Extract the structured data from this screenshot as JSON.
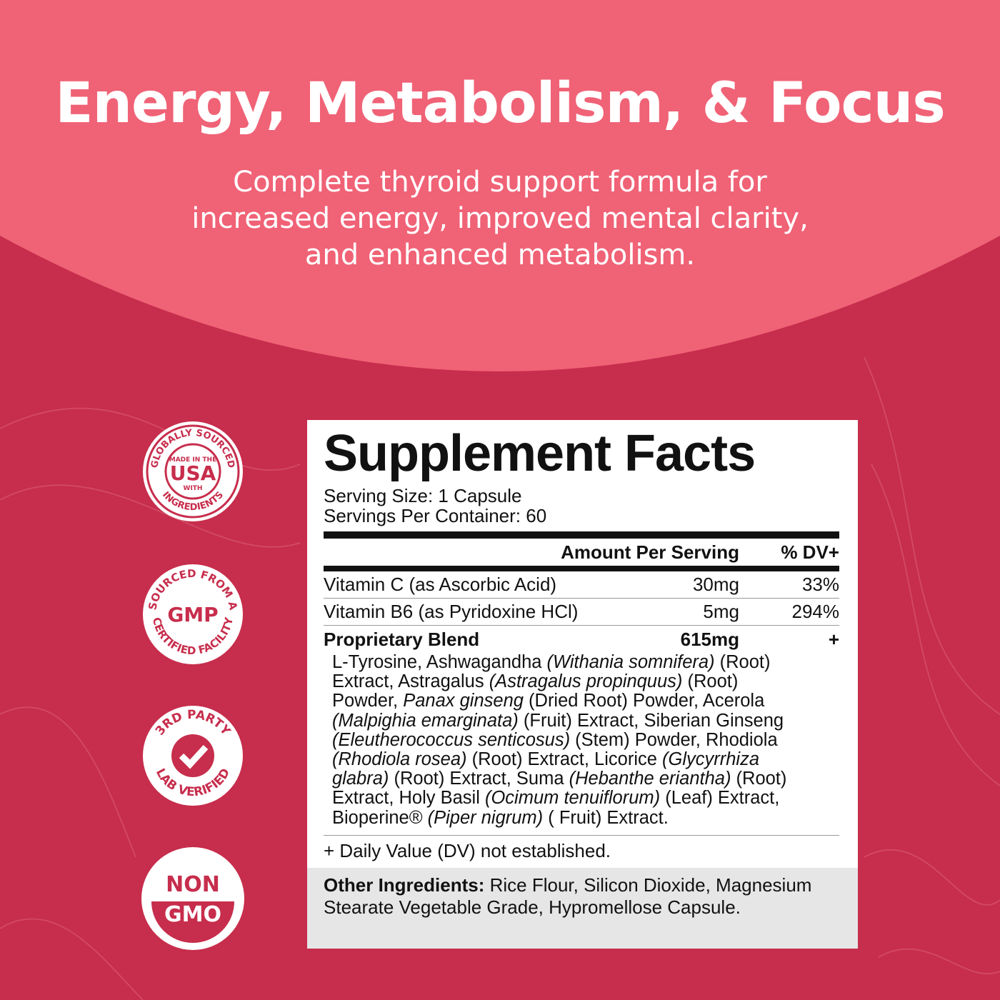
{
  "colors": {
    "hero": "#f06276",
    "background": "#c72d4c",
    "panel": "#ffffff",
    "other_bg": "#e6e6e7"
  },
  "header": {
    "title": "Energy, Metabolism, & Focus",
    "subtitle_lines": [
      "Complete thyroid support formula for",
      "increased energy, improved mental clarity,",
      "and enhanced metabolism."
    ]
  },
  "badges": [
    {
      "top": "GLOBALLY SOURCED",
      "small1": "MADE IN THE",
      "big": "USA",
      "small2": "WITH",
      "bottom": "INGREDIENTS"
    },
    {
      "top": "SOURCED FROM A",
      "big": "GMP",
      "bottom": "CERTIFIED FACILITY"
    },
    {
      "top": "3RD PARTY",
      "icon": "checkmark-icon",
      "bottom": "LAB VERIFIED"
    },
    {
      "line1": "NON",
      "line2": "GMO"
    }
  ],
  "facts": {
    "title": "Supplement Facts",
    "serving_size": "Serving Size: 1 Capsule",
    "servings_per_container": "Servings Per Container: 60",
    "col_amount": "Amount Per Serving",
    "col_dv": "% DV+",
    "rows": [
      {
        "name": "Vitamin C (as Ascorbic Acid)",
        "amount": "30mg",
        "dv": "33%"
      },
      {
        "name": "Vitamin B6 (as Pyridoxine HCl)",
        "amount": "5mg",
        "dv": "294%"
      }
    ],
    "blend": {
      "name": "Proprietary Blend",
      "amount": "615mg",
      "dv": "+",
      "lines": [
        [
          [
            "L-Tyrosine, Ashwagandha ",
            0
          ],
          [
            "(Withania somnifera)",
            1
          ],
          [
            " (Root)",
            0
          ]
        ],
        [
          [
            "Extract, Astragalus ",
            0
          ],
          [
            "(Astragalus propinquus)",
            1
          ],
          [
            " (Root)",
            0
          ]
        ],
        [
          [
            "Powder, ",
            0
          ],
          [
            "Panax ginseng",
            1
          ],
          [
            " (Dried Root) Powder, Acerola",
            0
          ]
        ],
        [
          [
            "(Malpighia emarginata)",
            1
          ],
          [
            " (Fruit) Extract, Siberian Ginseng",
            0
          ]
        ],
        [
          [
            "(Eleutherococcus senticosus)",
            1
          ],
          [
            " (Stem) Powder, Rhodiola",
            0
          ]
        ],
        [
          [
            "(Rhodiola rosea)",
            1
          ],
          [
            " (Root) Extract, Licorice ",
            0
          ],
          [
            "(Glycyrrhiza",
            1
          ]
        ],
        [
          [
            "glabra)",
            1
          ],
          [
            " (Root) Extract, Suma ",
            0
          ],
          [
            "(Hebanthe eriantha)",
            1
          ],
          [
            " (Root)",
            0
          ]
        ],
        [
          [
            "Extract, Holy Basil ",
            0
          ],
          [
            "(Ocimum tenuiflorum)",
            1
          ],
          [
            " (Leaf) Extract,",
            0
          ]
        ],
        [
          [
            "Bioperine® ",
            0
          ],
          [
            "(Piper nigrum)",
            1
          ],
          [
            " ( Fruit) Extract.",
            0
          ]
        ]
      ]
    },
    "footnote": "+ Daily Value (DV) not established.",
    "other_label": "Other Ingredients:",
    "other_text": " Rice Flour, Silicon Dioxide, Magnesium Stearate Vegetable Grade, Hypromellose Capsule."
  }
}
